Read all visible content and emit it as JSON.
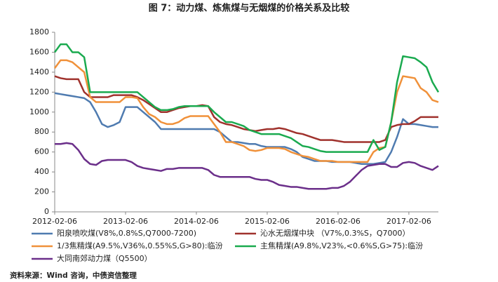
{
  "chart_data": {
    "type": "line",
    "title": "图 7：动力煤、炼焦煤与无烟煤的价格关系及比较",
    "source": "资料来源：Wind 咨询，中债资信整理",
    "categories": [
      "2012-02-06",
      null,
      null,
      null,
      null,
      null,
      null,
      null,
      null,
      null,
      null,
      null,
      "2013-02-06",
      null,
      null,
      null,
      null,
      null,
      null,
      null,
      null,
      null,
      null,
      null,
      "2014-02-06",
      null,
      null,
      null,
      null,
      null,
      null,
      null,
      null,
      null,
      null,
      null,
      "2015-02-06",
      null,
      null,
      null,
      null,
      null,
      null,
      null,
      null,
      null,
      null,
      null,
      "2016-02-06",
      null,
      null,
      null,
      null,
      null,
      null,
      null,
      null,
      null,
      null,
      null,
      "2017-02-06",
      null,
      null,
      null,
      null,
      null
    ],
    "ylim": [
      0,
      1800
    ],
    "yticks": [
      0,
      200,
      400,
      600,
      800,
      1000,
      1200,
      1400,
      1600,
      1800
    ],
    "grid": false,
    "series": [
      {
        "name": "阳泉喷吹煤(V8%,0.8%S,Q7000-7200)",
        "color": "#4f7bb0",
        "values": [
          1190,
          1180,
          1170,
          1160,
          1150,
          1140,
          1100,
          1000,
          880,
          850,
          870,
          900,
          1050,
          1050,
          1050,
          1000,
          950,
          900,
          830,
          830,
          830,
          830,
          830,
          830,
          830,
          830,
          830,
          830,
          800,
          750,
          700,
          700,
          690,
          680,
          680,
          660,
          650,
          650,
          650,
          650,
          630,
          600,
          550,
          530,
          510,
          510,
          510,
          500,
          500,
          500,
          500,
          490,
          480,
          480,
          480,
          490,
          500,
          600,
          750,
          930,
          880,
          880,
          870,
          860,
          850,
          850
        ]
      },
      {
        "name": "沁水无烟煤中块 （V7%,0.3%S，Q7000）",
        "color": "#a0322d",
        "values": [
          1360,
          1340,
          1330,
          1330,
          1330,
          1200,
          1150,
          1150,
          1150,
          1150,
          1170,
          1170,
          1170,
          1170,
          1150,
          1120,
          1080,
          1040,
          1000,
          1000,
          1020,
          1040,
          1050,
          1060,
          1060,
          1070,
          1060,
          950,
          900,
          880,
          870,
          850,
          830,
          820,
          810,
          820,
          830,
          830,
          840,
          830,
          810,
          790,
          780,
          760,
          740,
          720,
          720,
          720,
          710,
          700,
          700,
          700,
          700,
          700,
          700,
          700,
          720,
          850,
          870,
          880,
          880,
          910,
          950,
          950,
          950,
          950
        ]
      },
      {
        "name": "1/3焦精煤(A9.5%,V36%,0.55%S,G>80):临汾",
        "color": "#f0913a",
        "values": [
          1440,
          1520,
          1520,
          1500,
          1450,
          1400,
          1150,
          1100,
          1100,
          1100,
          1100,
          1100,
          1150,
          1150,
          1140,
          1050,
          980,
          950,
          900,
          880,
          880,
          900,
          940,
          960,
          960,
          960,
          960,
          880,
          800,
          700,
          700,
          680,
          660,
          620,
          610,
          620,
          640,
          640,
          640,
          630,
          600,
          580,
          560,
          550,
          530,
          510,
          510,
          510,
          500,
          500,
          500,
          500,
          500,
          500,
          600,
          640,
          650,
          900,
          1200,
          1360,
          1350,
          1340,
          1240,
          1200,
          1120,
          1100
        ]
      },
      {
        "name": "主焦精煤(A9.8%,V23%,<0.6%S,G>75):临汾",
        "color": "#1aaa4f",
        "values": [
          1600,
          1680,
          1680,
          1600,
          1600,
          1550,
          1200,
          1200,
          1200,
          1200,
          1200,
          1200,
          1200,
          1200,
          1200,
          1150,
          1100,
          1050,
          1020,
          1020,
          1030,
          1050,
          1060,
          1060,
          1060,
          1060,
          1060,
          1000,
          950,
          900,
          900,
          880,
          860,
          820,
          800,
          780,
          780,
          780,
          780,
          760,
          740,
          700,
          660,
          650,
          630,
          610,
          600,
          600,
          600,
          600,
          600,
          600,
          600,
          600,
          720,
          620,
          650,
          900,
          1300,
          1560,
          1550,
          1540,
          1500,
          1450,
          1300,
          1200
        ]
      },
      {
        "name": "大同南郊动力煤（Q5500）",
        "color": "#6b2f8a",
        "values": [
          680,
          680,
          690,
          680,
          620,
          530,
          480,
          470,
          510,
          520,
          520,
          520,
          520,
          500,
          460,
          440,
          430,
          420,
          410,
          430,
          430,
          440,
          440,
          440,
          440,
          440,
          420,
          370,
          350,
          350,
          350,
          350,
          350,
          350,
          330,
          320,
          320,
          300,
          270,
          260,
          250,
          250,
          240,
          230,
          230,
          230,
          230,
          240,
          240,
          260,
          300,
          360,
          420,
          460,
          470,
          480,
          480,
          450,
          450,
          490,
          500,
          490,
          460,
          440,
          420,
          460
        ]
      }
    ]
  }
}
